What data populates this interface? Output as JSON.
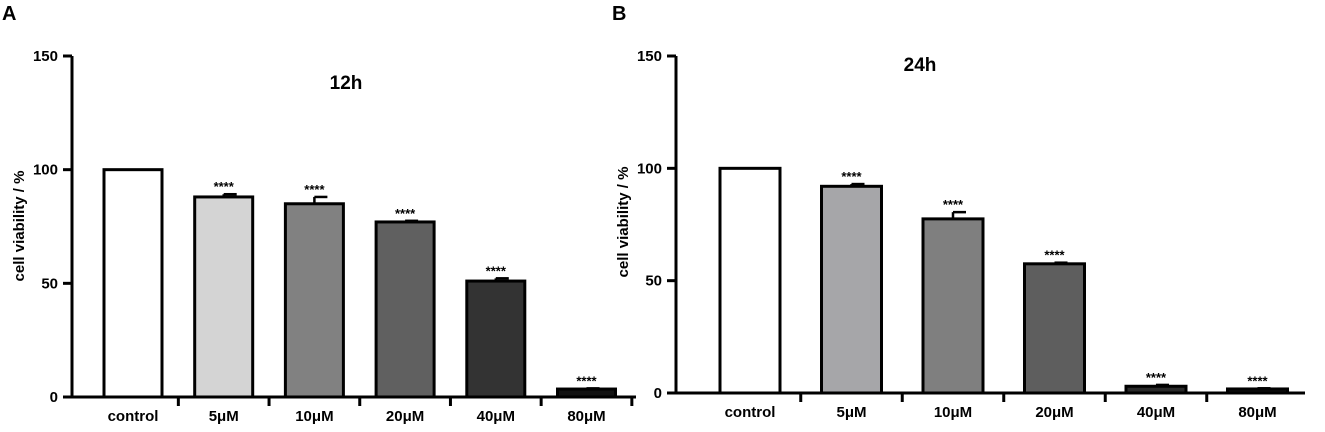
{
  "chart_data": [
    {
      "type": "bar",
      "panel_label": "A",
      "title": "12h",
      "ylabel": "cell viability / %",
      "xlabel": "",
      "ylim": [
        0,
        150
      ],
      "yticks": [
        "0",
        "50",
        "100",
        "150"
      ],
      "categories": [
        "control",
        "5μM",
        "10μM",
        "20μM",
        "40μM",
        "80μM"
      ],
      "values": [
        100,
        88,
        85,
        77,
        51,
        3.5
      ],
      "errors": [
        0,
        1.2,
        3,
        0.5,
        1.2,
        0.3
      ],
      "significance": [
        "",
        "****",
        "****",
        "****",
        "****",
        "****"
      ],
      "bar_colors": [
        "#ffffff",
        "#d4d4d4",
        "#818181",
        "#606060",
        "#333333",
        "#111111"
      ],
      "grid": false,
      "legend": "none"
    },
    {
      "type": "bar",
      "panel_label": "B",
      "title": "24h",
      "ylabel": "cell viability / %",
      "xlabel": "",
      "ylim": [
        0,
        150
      ],
      "yticks": [
        "0",
        "50",
        "100",
        "150"
      ],
      "categories": [
        "control",
        "5μM",
        "10μM",
        "20μM",
        "40μM",
        "80μM"
      ],
      "values": [
        100,
        92,
        77.5,
        57.5,
        3,
        1.8
      ],
      "errors": [
        0,
        1,
        3,
        0.5,
        0.6,
        0.3
      ],
      "significance": [
        "",
        "****",
        "****",
        "****",
        "****",
        "****"
      ],
      "bar_colors": [
        "#ffffff",
        "#a6a6a9",
        "#7f7f7f",
        "#5e5e5e",
        "#2a2a2a",
        "#111111"
      ],
      "grid": false,
      "legend": "none"
    }
  ]
}
